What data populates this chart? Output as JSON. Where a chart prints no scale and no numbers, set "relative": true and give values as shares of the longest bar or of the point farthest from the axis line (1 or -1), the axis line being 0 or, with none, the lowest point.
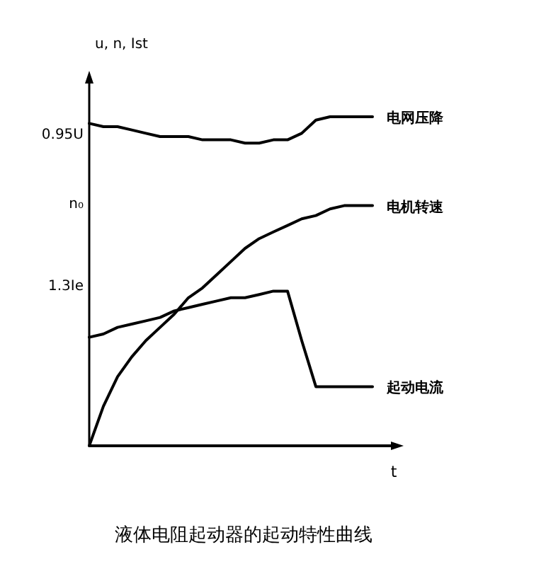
{
  "chart_data": {
    "type": "line",
    "relative": true,
    "annotations": [
      "0.95U",
      "n₀",
      "1.3Ie"
    ],
    "title": "液体电阻起动器的起动特性曲线",
    "ylabel": "u, n, Ist",
    "xlabel": "t",
    "legend": false,
    "marker": "none",
    "line_style": "solid",
    "grid": false,
    "categories": [
      null,
      null,
      null,
      null,
      null,
      null,
      null,
      null,
      null,
      null,
      null,
      null,
      null,
      null,
      null,
      null,
      null,
      null,
      null,
      null,
      null
    ],
    "series": [
      {
        "name": "电网压降",
        "color": "#000000",
        "values": [
          0.98,
          0.97,
          0.97,
          0.96,
          0.95,
          0.94,
          0.94,
          0.94,
          0.93,
          0.93,
          0.93,
          0.92,
          0.92,
          0.93,
          0.93,
          0.95,
          0.99,
          1.0,
          1.0,
          1.0,
          1.0
        ]
      },
      {
        "name": "电机转速",
        "color": "#000000",
        "values": [
          0,
          0.12,
          0.21,
          0.27,
          0.32,
          0.36,
          0.4,
          0.45,
          0.48,
          0.52,
          0.56,
          0.6,
          0.63,
          0.65,
          0.67,
          0.69,
          0.7,
          0.72,
          0.73,
          0.73,
          0.73
        ]
      },
      {
        "name": "起动电流",
        "color": "#000000",
        "values": [
          0.33,
          0.34,
          0.36,
          0.37,
          0.38,
          0.39,
          0.41,
          0.42,
          0.43,
          0.44,
          0.45,
          0.45,
          0.46,
          0.47,
          0.47,
          0.32,
          0.18,
          0.18,
          0.18,
          0.18,
          0.18
        ]
      }
    ]
  }
}
